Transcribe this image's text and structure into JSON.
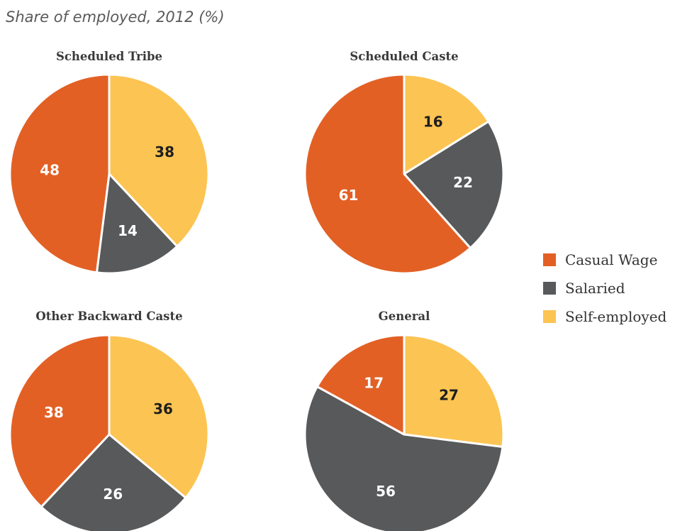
{
  "figure": {
    "title": "Share of employed, 2012 (%)"
  },
  "colors": {
    "casual_wage": "#E36025",
    "salaried": "#58595B",
    "self_employed": "#FCC452"
  },
  "legend": {
    "items": [
      {
        "label": "Casual Wage",
        "color": "#E36025"
      },
      {
        "label": "Salaried",
        "color": "#58595B"
      },
      {
        "label": "Self-employed",
        "color": "#FCC452"
      }
    ]
  },
  "chart_data": [
    {
      "type": "pie",
      "title": "Scheduled Tribe",
      "slices": [
        {
          "label": "Self-employed",
          "value": 38,
          "color": "#FCC452"
        },
        {
          "label": "Salaried",
          "value": 14,
          "color": "#58595B"
        },
        {
          "label": "Casual Wage",
          "value": 48,
          "color": "#E36025"
        }
      ]
    },
    {
      "type": "pie",
      "title": "Scheduled Caste",
      "slices": [
        {
          "label": "Self-employed",
          "value": 16,
          "color": "#FCC452"
        },
        {
          "label": "Salaried",
          "value": 22,
          "color": "#58595B"
        },
        {
          "label": "Casual Wage",
          "value": 61,
          "color": "#E36025"
        }
      ]
    },
    {
      "type": "pie",
      "title": "Other Backward Caste",
      "slices": [
        {
          "label": "Self-employed",
          "value": 36,
          "color": "#FCC452"
        },
        {
          "label": "Salaried",
          "value": 26,
          "color": "#58595B"
        },
        {
          "label": "Casual Wage",
          "value": 38,
          "color": "#E36025"
        }
      ]
    },
    {
      "type": "pie",
      "title": "General",
      "slices": [
        {
          "label": "Self-employed",
          "value": 27,
          "color": "#FCC452"
        },
        {
          "label": "Salaried",
          "value": 56,
          "color": "#58595B"
        },
        {
          "label": "Casual Wage",
          "value": 17,
          "color": "#E36025"
        }
      ]
    }
  ]
}
